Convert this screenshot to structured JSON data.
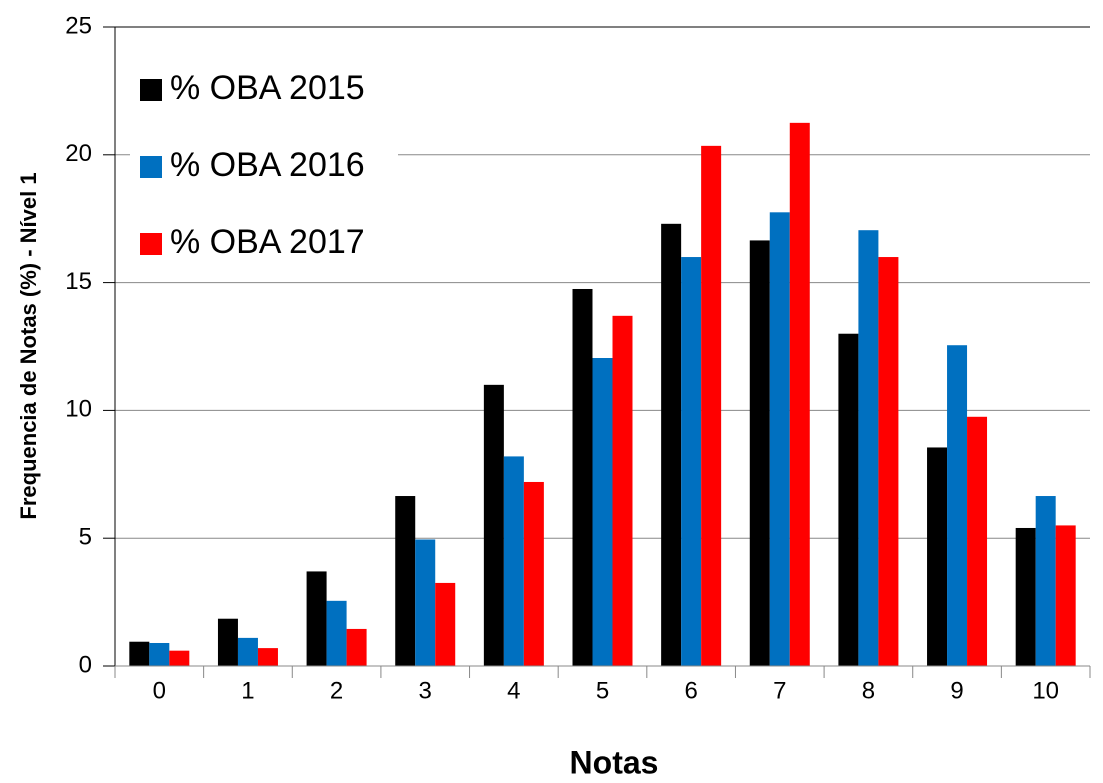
{
  "chart_data": {
    "type": "bar",
    "xlabel": "Notas",
    "ylabel": "Frequencia de Notas (%) - Nível 1",
    "categories": [
      "0",
      "1",
      "2",
      "3",
      "4",
      "5",
      "6",
      "7",
      "8",
      "9",
      "10"
    ],
    "series": [
      {
        "name": "% OBA 2015",
        "color": "#000000",
        "values": [
          0.95,
          1.85,
          3.7,
          6.65,
          11.0,
          14.75,
          17.3,
          16.65,
          13.0,
          8.55,
          5.4
        ]
      },
      {
        "name": "% OBA 2016",
        "color": "#0070c0",
        "values": [
          0.9,
          1.1,
          2.55,
          4.95,
          8.2,
          12.05,
          16.0,
          17.75,
          17.05,
          12.55,
          6.65
        ]
      },
      {
        "name": "% OBA 2017",
        "color": "#ff0000",
        "values": [
          0.6,
          0.7,
          1.45,
          3.25,
          7.2,
          13.7,
          20.35,
          21.25,
          16.0,
          9.75,
          5.5
        ]
      }
    ],
    "ylim": [
      0,
      25
    ],
    "yticks": [
      0,
      5,
      10,
      15,
      20,
      25
    ],
    "grid": true,
    "legend": "upper left"
  }
}
